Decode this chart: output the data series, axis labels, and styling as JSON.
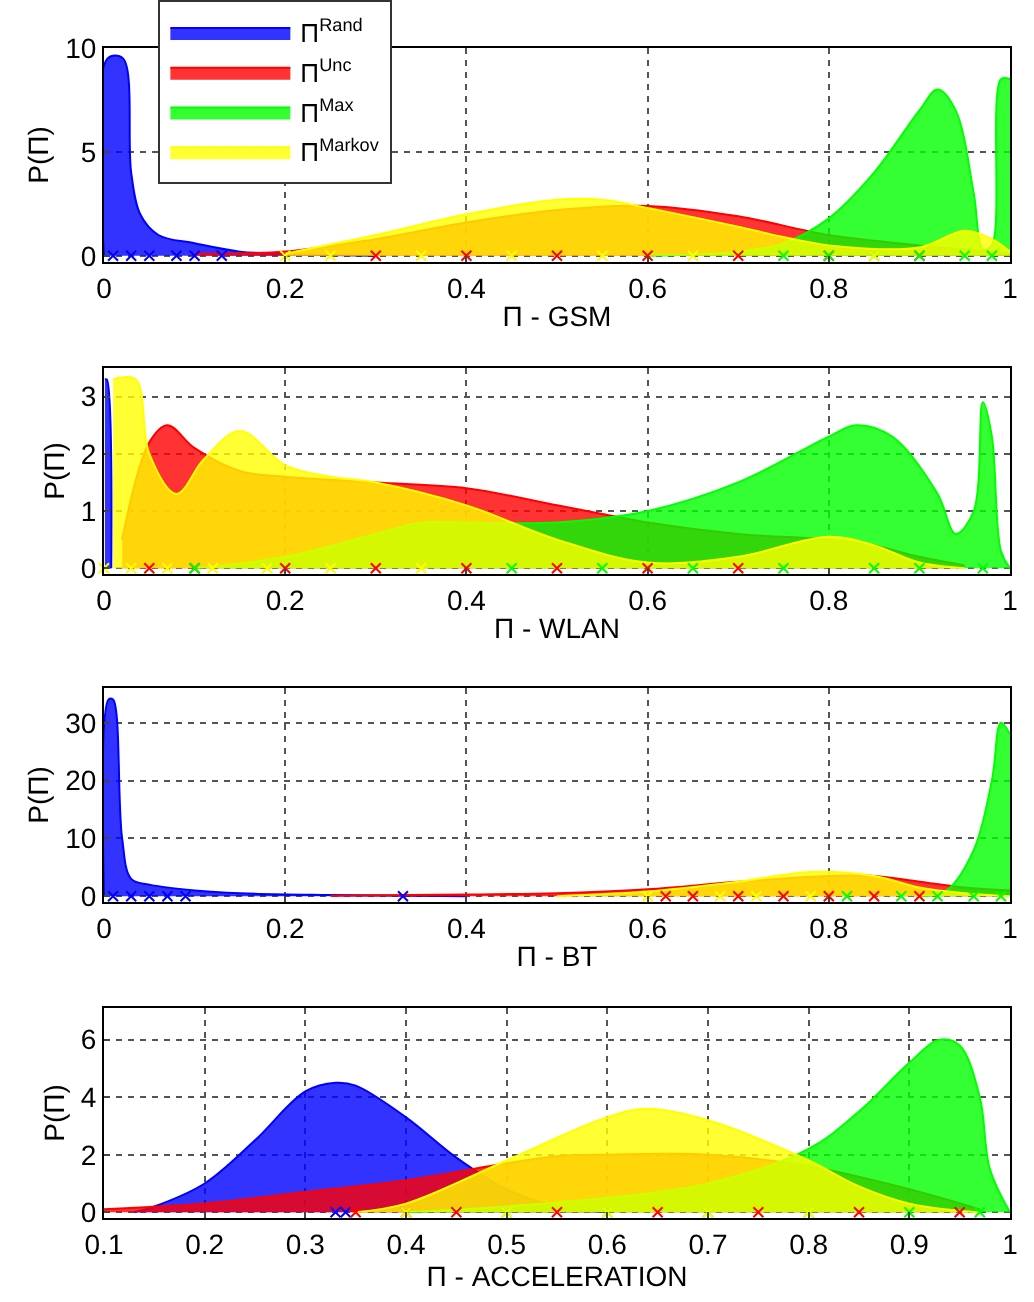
{
  "chart_data": [
    {
      "type": "area",
      "xlabel": "Π - GSM",
      "ylabel": "P(Π)",
      "xlim": [
        0,
        1
      ],
      "xticks": [
        0,
        0.2,
        0.4,
        0.6,
        0.8,
        1
      ],
      "ylim": [
        -0.3,
        10
      ],
      "yticks": [
        0,
        5,
        10
      ],
      "grid": true,
      "legend": "top left",
      "series": [
        {
          "name": "Π$^{Rand}$",
          "color": "#0000ff",
          "x": [
            0,
            0.004,
            0.021,
            0.03,
            0.04,
            0.06,
            0.1,
            0.15,
            0.2,
            0.3
          ],
          "values": [
            0,
            9.5,
            9.5,
            4,
            2,
            1,
            0.6,
            0.2,
            0.1,
            0
          ]
        },
        {
          "name": "Π$^{Unc}$",
          "color": "#ff0000",
          "x": [
            0.1,
            0.2,
            0.3,
            0.4,
            0.5,
            0.6,
            0.7,
            0.8,
            0.9,
            0.95,
            1.0
          ],
          "values": [
            0.1,
            0.2,
            0.8,
            1.6,
            2.2,
            2.4,
            1.9,
            1.0,
            0.5,
            0.3,
            0.1
          ]
        },
        {
          "name": "Π$^{Max}$",
          "color": "#00ff00",
          "x": [
            0.6,
            0.7,
            0.75,
            0.8,
            0.85,
            0.9,
            0.92,
            0.94,
            0.96,
            0.97,
            0.98,
            0.99,
            1.0
          ],
          "values": [
            0,
            0.2,
            0.6,
            1.8,
            4,
            7,
            8,
            7,
            3,
            0.3,
            0.5,
            8.5,
            8.5
          ]
        },
        {
          "name": "Π$^{Markov}$",
          "color": "#ffff00",
          "x": [
            0.2,
            0.3,
            0.4,
            0.5,
            0.55,
            0.6,
            0.7,
            0.75,
            0.8,
            0.9,
            0.95,
            0.98,
            1.0
          ],
          "values": [
            0.1,
            1.0,
            2.0,
            2.7,
            2.7,
            2.3,
            1.4,
            0.9,
            0.5,
            0.4,
            1.2,
            0.8,
            0.2
          ]
        },
        {
          "type": "scatter",
          "marker": "cross",
          "color": "#0000ff",
          "x": [
            0.01,
            0.03,
            0.05,
            0.08,
            0.1,
            0.13
          ],
          "values": [
            0,
            0,
            0,
            0,
            0,
            0
          ]
        },
        {
          "type": "scatter",
          "marker": "cross",
          "color": "#ff0000",
          "x": [
            0.3,
            0.4,
            0.5,
            0.6,
            0.7,
            0.8,
            0.9
          ],
          "values": [
            0,
            0,
            0,
            0,
            0,
            0,
            0
          ]
        },
        {
          "type": "scatter",
          "marker": "cross",
          "color": "#00ff00",
          "x": [
            0.75,
            0.8,
            0.85,
            0.9,
            0.95,
            0.98
          ],
          "values": [
            0,
            0,
            0,
            0,
            0,
            0
          ]
        },
        {
          "type": "scatter",
          "marker": "cross",
          "color": "#ffff00",
          "x": [
            0.2,
            0.25,
            0.35,
            0.45,
            0.55,
            0.65,
            0.85
          ],
          "values": [
            0,
            0,
            0,
            0,
            0,
            0,
            0
          ]
        }
      ]
    },
    {
      "type": "area",
      "xlabel": "Π - WLAN",
      "ylabel": "P(Π)",
      "xlim": [
        0,
        1
      ],
      "xticks": [
        0,
        0.2,
        0.4,
        0.6,
        0.8,
        1
      ],
      "ylim": [
        -0.1,
        3.5
      ],
      "yticks": [
        0,
        1,
        2,
        3
      ],
      "grid": true,
      "series": [
        {
          "color": "#0000ff",
          "x": [
            0.001,
            0.003,
            0.008
          ],
          "values": [
            3.3,
            3.3,
            0
          ]
        },
        {
          "color": "#ff0000",
          "x": [
            0.02,
            0.05,
            0.07,
            0.1,
            0.15,
            0.2,
            0.3,
            0.4,
            0.5,
            0.55,
            0.6,
            0.7,
            0.8,
            0.85,
            0.9,
            0.95
          ],
          "values": [
            0.5,
            2.2,
            2.5,
            2.1,
            1.7,
            1.6,
            1.5,
            1.4,
            1.1,
            0.95,
            0.8,
            0.6,
            0.5,
            0.4,
            0.2,
            0.05
          ]
        },
        {
          "color": "#00ff00",
          "x": [
            0.1,
            0.2,
            0.3,
            0.35,
            0.4,
            0.5,
            0.6,
            0.7,
            0.8,
            0.83,
            0.87,
            0.92,
            0.94,
            0.96,
            0.97,
            0.98,
            0.99,
            1.0
          ],
          "values": [
            0,
            0.2,
            0.6,
            0.8,
            0.8,
            0.8,
            1.0,
            1.5,
            2.3,
            2.5,
            2.3,
            1.3,
            0.6,
            1.0,
            2.9,
            2.3,
            0.3,
            0
          ]
        },
        {
          "color": "#ffff00",
          "x": [
            0.01,
            0.035,
            0.05,
            0.08,
            0.11,
            0.15,
            0.2,
            0.25,
            0.3,
            0.4,
            0.5,
            0.6,
            0.7,
            0.8,
            0.85,
            0.9,
            0.95
          ],
          "values": [
            3.3,
            3.3,
            2.0,
            1.3,
            1.9,
            2.4,
            1.8,
            1.6,
            1.5,
            1.1,
            0.5,
            0.1,
            0.2,
            0.55,
            0.4,
            0.1,
            0
          ]
        },
        {
          "type": "scatter",
          "marker": "cross",
          "color": "#ff0000",
          "x": [
            0.05,
            0.1,
            0.2,
            0.3,
            0.4,
            0.5,
            0.6,
            0.7
          ],
          "values": [
            0,
            0,
            0,
            0,
            0,
            0,
            0,
            0
          ]
        },
        {
          "type": "scatter",
          "marker": "cross",
          "color": "#00ff00",
          "x": [
            0.1,
            0.45,
            0.55,
            0.65,
            0.75,
            0.85,
            0.9,
            0.97
          ],
          "values": [
            0,
            0,
            0,
            0,
            0,
            0,
            0,
            0
          ]
        },
        {
          "type": "scatter",
          "marker": "cross",
          "color": "#ffff00",
          "x": [
            0,
            0.03,
            0.07,
            0.12,
            0.18,
            0.25,
            0.35
          ],
          "values": [
            0,
            0,
            0,
            0,
            0,
            0,
            0
          ]
        }
      ]
    },
    {
      "type": "area",
      "xlabel": "Π - BT",
      "ylabel": "P(Π)",
      "xlim": [
        0,
        1
      ],
      "xticks": [
        0,
        0.2,
        0.4,
        0.6,
        0.8,
        1
      ],
      "ylim": [
        -1,
        36
      ],
      "yticks": [
        0,
        10,
        20,
        30
      ],
      "grid": true,
      "series": [
        {
          "color": "#0000ff",
          "x": [
            0,
            0.005,
            0.01,
            0.02,
            0.03,
            0.05,
            0.1,
            0.15,
            0.25,
            0.4
          ],
          "values": [
            0,
            34,
            34,
            10,
            3,
            2,
            1,
            0.5,
            0.2,
            0
          ]
        },
        {
          "color": "#ff0000",
          "x": [
            0.25,
            0.4,
            0.5,
            0.6,
            0.7,
            0.8,
            0.85,
            0.9,
            0.95,
            1.0
          ],
          "values": [
            0.1,
            0.3,
            0.5,
            1.2,
            2.5,
            3.5,
            3.5,
            2.5,
            1.5,
            1.0
          ]
        },
        {
          "color": "#00ff00",
          "x": [
            0.9,
            0.93,
            0.96,
            0.98,
            0.99,
            1.0
          ],
          "values": [
            0,
            1,
            8,
            20,
            30,
            28
          ]
        },
        {
          "color": "#ffff00",
          "x": [
            0.5,
            0.6,
            0.7,
            0.78,
            0.85,
            0.9,
            0.95,
            1.0
          ],
          "values": [
            0,
            0.8,
            2.5,
            4.2,
            3.5,
            1.5,
            0.5,
            0
          ]
        },
        {
          "type": "scatter",
          "marker": "cross",
          "color": "#0000ff",
          "x": [
            0.01,
            0.03,
            0.05,
            0.07,
            0.09,
            0.33
          ],
          "values": [
            0,
            0,
            0,
            0,
            0,
            0
          ]
        },
        {
          "type": "scatter",
          "marker": "cross",
          "color": "#ff0000",
          "x": [
            0.62,
            0.65,
            0.7,
            0.75,
            0.8,
            0.85,
            0.9
          ],
          "values": [
            0,
            0,
            0,
            0,
            0,
            0,
            0
          ]
        },
        {
          "type": "scatter",
          "marker": "cross",
          "color": "#00ff00",
          "x": [
            0.82,
            0.88,
            0.92,
            0.96,
            0.99
          ],
          "values": [
            0,
            0,
            0,
            0,
            0
          ]
        },
        {
          "type": "scatter",
          "marker": "cross",
          "color": "#ffff00",
          "x": [
            0.6,
            0.68,
            0.72,
            0.78
          ],
          "values": [
            0,
            0,
            0,
            0
          ]
        }
      ]
    },
    {
      "type": "area",
      "xlabel": "Π - ACCELERATION",
      "ylabel": "P(Π)",
      "xlim": [
        0.1,
        1
      ],
      "xticks": [
        0.1,
        0.2,
        0.3,
        0.4,
        0.5,
        0.6,
        0.7,
        0.8,
        0.9,
        1
      ],
      "ylim": [
        -0.2,
        7.1
      ],
      "yticks": [
        0,
        2,
        4,
        6
      ],
      "grid": true,
      "series": [
        {
          "color": "#0000ff",
          "x": [
            0.13,
            0.15,
            0.2,
            0.25,
            0.3,
            0.33,
            0.35,
            0.4,
            0.45,
            0.5,
            0.55,
            0.6
          ],
          "values": [
            0,
            0.2,
            1.0,
            2.5,
            4.2,
            4.5,
            4.4,
            3.3,
            1.9,
            0.8,
            0.2,
            0
          ]
        },
        {
          "color": "#ff0000",
          "x": [
            0.1,
            0.2,
            0.3,
            0.4,
            0.5,
            0.55,
            0.6,
            0.7,
            0.8,
            0.9,
            0.97
          ],
          "values": [
            0.1,
            0.3,
            0.7,
            1.1,
            1.7,
            1.95,
            2.0,
            2.0,
            1.6,
            0.8,
            0.1
          ]
        },
        {
          "color": "#00ff00",
          "x": [
            0.4,
            0.5,
            0.6,
            0.7,
            0.8,
            0.85,
            0.9,
            0.93,
            0.95,
            0.97,
            0.98,
            1.0
          ],
          "values": [
            0,
            0.2,
            0.5,
            1.0,
            2.2,
            3.5,
            5.2,
            6.0,
            5.8,
            4.0,
            1.5,
            0
          ]
        },
        {
          "color": "#ffff00",
          "x": [
            0.35,
            0.4,
            0.5,
            0.6,
            0.64,
            0.7,
            0.8,
            0.85,
            0.9,
            0.95,
            0.97
          ],
          "values": [
            0,
            0.3,
            1.8,
            3.3,
            3.6,
            3.2,
            1.8,
            0.9,
            0.3,
            0.05,
            0
          ]
        },
        {
          "type": "scatter",
          "marker": "cross",
          "color": "#0000ff",
          "x": [
            0.33,
            0.34
          ],
          "values": [
            0,
            0
          ]
        },
        {
          "type": "scatter",
          "marker": "cross",
          "color": "#ff0000",
          "x": [
            0.35,
            0.4,
            0.45,
            0.55,
            0.65,
            0.75,
            0.85,
            0.95
          ],
          "values": [
            0,
            0,
            0,
            0,
            0,
            0,
            0,
            0
          ]
        },
        {
          "type": "scatter",
          "marker": "cross",
          "color": "#00ff00",
          "x": [
            0.5,
            0.6,
            0.7,
            0.8,
            0.9,
            0.97
          ],
          "values": [
            0,
            0,
            0,
            0,
            0,
            0
          ]
        },
        {
          "type": "scatter",
          "marker": "cross",
          "color": "#ffff00",
          "x": [
            0.4,
            0.5,
            0.6,
            0.7,
            0.8
          ],
          "values": [
            0,
            0,
            0,
            0,
            0
          ]
        }
      ]
    }
  ]
}
